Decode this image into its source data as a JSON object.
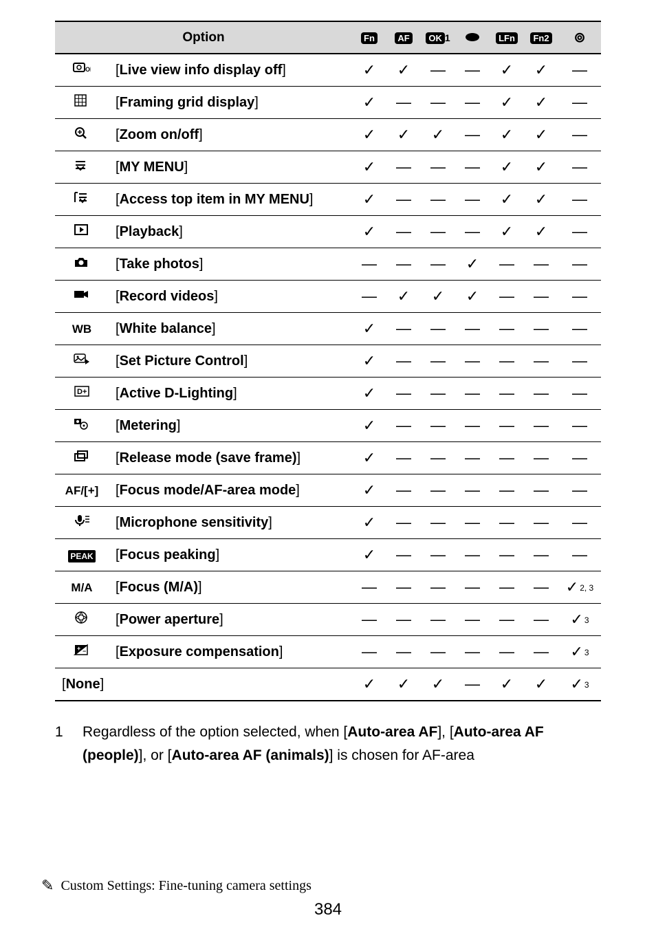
{
  "table": {
    "header_option": "Option",
    "header_icons": [
      "Fn",
      "AF",
      "OK1",
      "●",
      "LFn",
      "Fn2",
      "⦿"
    ],
    "rows": [
      {
        "icon_svg": "lvoff",
        "label": "Live view info display off",
        "marks": [
          "✓",
          "✓",
          "—",
          "—",
          "✓",
          "✓",
          "—"
        ]
      },
      {
        "icon_svg": "grid",
        "label": "Framing grid display",
        "marks": [
          "✓",
          "—",
          "—",
          "—",
          "✓",
          "✓",
          "—"
        ]
      },
      {
        "icon_svg": "zoom",
        "label": "Zoom on/off",
        "marks": [
          "✓",
          "✓",
          "✓",
          "—",
          "✓",
          "✓",
          "—"
        ]
      },
      {
        "icon_svg": "mymenu",
        "label": "MY MENU",
        "marks": [
          "✓",
          "—",
          "—",
          "—",
          "✓",
          "✓",
          "—"
        ]
      },
      {
        "icon_svg": "mymenutop",
        "label": "Access top item in MY MENU",
        "marks": [
          "✓",
          "—",
          "—",
          "—",
          "✓",
          "✓",
          "—"
        ]
      },
      {
        "icon_svg": "playback",
        "label": "Playback",
        "marks": [
          "✓",
          "—",
          "—",
          "—",
          "✓",
          "✓",
          "—"
        ]
      },
      {
        "icon_svg": "camera",
        "label": "Take photos",
        "marks": [
          "—",
          "—",
          "—",
          "✓",
          "—",
          "—",
          "—"
        ]
      },
      {
        "icon_svg": "video",
        "label": "Record videos",
        "marks": [
          "—",
          "✓",
          "✓",
          "✓",
          "—",
          "—",
          "—"
        ]
      },
      {
        "icon_text": "WB",
        "label": "White balance",
        "marks": [
          "✓",
          "—",
          "—",
          "—",
          "—",
          "—",
          "—"
        ]
      },
      {
        "icon_svg": "picctrl",
        "label": "Set Picture Control",
        "marks": [
          "✓",
          "—",
          "—",
          "—",
          "—",
          "—",
          "—"
        ]
      },
      {
        "icon_svg": "adl",
        "label": "Active D-Lighting",
        "marks": [
          "✓",
          "—",
          "—",
          "—",
          "—",
          "—",
          "—"
        ]
      },
      {
        "icon_svg": "metering",
        "label": "Metering",
        "marks": [
          "✓",
          "—",
          "—",
          "—",
          "—",
          "—",
          "—"
        ]
      },
      {
        "icon_svg": "release",
        "label": "Release mode (save frame)",
        "marks": [
          "✓",
          "—",
          "—",
          "—",
          "—",
          "—",
          "—"
        ]
      },
      {
        "icon_text": "AF/[+]",
        "label": "Focus mode/AF-area mode",
        "marks": [
          "✓",
          "—",
          "—",
          "—",
          "—",
          "—",
          "—"
        ]
      },
      {
        "icon_svg": "mic",
        "label": "Microphone sensitivity",
        "marks": [
          "✓",
          "—",
          "—",
          "—",
          "—",
          "—",
          "—"
        ]
      },
      {
        "icon_svg": "peak",
        "label": "Focus peaking",
        "marks": [
          "✓",
          "—",
          "—",
          "—",
          "—",
          "—",
          "—"
        ]
      },
      {
        "icon_text": "M/A",
        "label": "Focus (M/A)",
        "marks": [
          "—",
          "—",
          "—",
          "—",
          "—",
          "—",
          "✓"
        ],
        "sup": [
          "",
          "",
          "",
          "",
          "",
          "",
          "2, 3"
        ]
      },
      {
        "icon_svg": "aperture",
        "label": "Power aperture",
        "marks": [
          "—",
          "—",
          "—",
          "—",
          "—",
          "—",
          "✓"
        ],
        "sup": [
          "",
          "",
          "",
          "",
          "",
          "",
          "3"
        ]
      },
      {
        "icon_svg": "expcomp",
        "label": "Exposure compensation",
        "marks": [
          "—",
          "—",
          "—",
          "—",
          "—",
          "—",
          "✓"
        ],
        "sup": [
          "",
          "",
          "",
          "",
          "",
          "",
          "3"
        ]
      }
    ],
    "none_label": "None",
    "none_marks": [
      "✓",
      "✓",
      "✓",
      "—",
      "✓",
      "✓",
      "✓"
    ],
    "none_sup": [
      "",
      "",
      "",
      "",
      "",
      "",
      "3"
    ]
  },
  "footnote": {
    "num": "1",
    "text_parts": [
      "Regardless of the option selected, when [",
      "Auto-area AF",
      "], [",
      "Auto-area AF (people)",
      "], or [",
      "Auto-area AF (animals)",
      "] is chosen for AF-area"
    ]
  },
  "footer": {
    "section": "Custom Settings: Fine-tuning camera settings",
    "page": "384"
  },
  "style": {
    "check": "✓",
    "dash": "—"
  }
}
